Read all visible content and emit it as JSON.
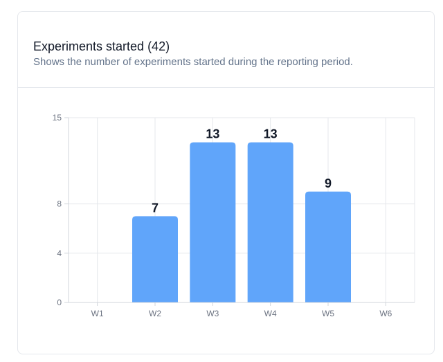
{
  "header": {
    "title": "Experiments started (42)",
    "subtitle": "Shows the number of experiments started during the reporting period."
  },
  "colors": {
    "bar": "#60a5fa",
    "grid": "#e5e7eb",
    "axis": "#d1d5db",
    "tick_text": "#6b7280",
    "label_text": "#111827"
  },
  "chart_data": {
    "type": "bar",
    "categories": [
      "W1",
      "W2",
      "W3",
      "W4",
      "W5",
      "W6"
    ],
    "values": [
      0,
      7,
      13,
      13,
      9,
      0
    ],
    "data_labels": [
      "",
      "7",
      "13",
      "13",
      "9",
      ""
    ],
    "yticks": [
      0,
      4,
      8,
      15
    ],
    "ylim": [
      0,
      15
    ],
    "grid": true,
    "xlabel": "",
    "ylabel": ""
  }
}
